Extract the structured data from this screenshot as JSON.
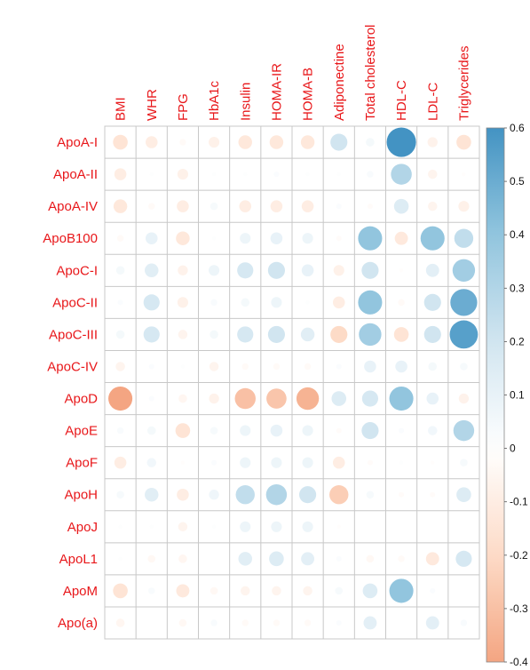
{
  "chart_data": {
    "type": "heatmap",
    "style": "correlation circle plot",
    "title": "",
    "columns": [
      "BMI",
      "WHR",
      "FPG",
      "HbA1c",
      "Insulin",
      "HOMA-IR",
      "HOMA-B",
      "Adiponectine",
      "Total cholesterol",
      "HDL-C",
      "LDL-C",
      "Triglycerides"
    ],
    "rows": [
      "ApoA-I",
      "ApoA-II",
      "ApoA-IV",
      "ApoB100",
      "ApoC-I",
      "ApoC-II",
      "ApoC-III",
      "ApoC-IV",
      "ApoD",
      "ApoE",
      "ApoF",
      "ApoH",
      "ApoJ",
      "ApoL1",
      "ApoM",
      "Apo(a)"
    ],
    "values": [
      [
        -0.15,
        -0.1,
        -0.03,
        -0.08,
        -0.13,
        -0.13,
        -0.13,
        0.2,
        0.05,
        0.6,
        -0.07,
        -0.15
      ],
      [
        -0.1,
        0.01,
        -0.08,
        0.01,
        0.01,
        0.02,
        0.01,
        0.01,
        0.03,
        0.3,
        -0.06,
        -0.01
      ],
      [
        -0.13,
        -0.03,
        -0.1,
        0.04,
        -0.1,
        -0.1,
        -0.1,
        0.02,
        -0.02,
        0.15,
        -0.06,
        -0.08
      ],
      [
        -0.03,
        0.1,
        -0.13,
        0.01,
        0.08,
        0.1,
        0.08,
        -0.02,
        0.4,
        -0.12,
        0.4,
        0.25
      ],
      [
        0.05,
        0.13,
        -0.07,
        0.08,
        0.18,
        0.2,
        0.1,
        -0.08,
        0.2,
        -0.01,
        0.12,
        0.35
      ],
      [
        0.02,
        0.18,
        -0.08,
        0.03,
        0.05,
        0.08,
        0.01,
        -0.1,
        0.4,
        -0.03,
        0.2,
        0.5
      ],
      [
        0.05,
        0.18,
        -0.06,
        0.05,
        0.18,
        0.2,
        0.13,
        -0.2,
        0.35,
        -0.15,
        0.2,
        0.55
      ],
      [
        -0.06,
        0.02,
        0.01,
        -0.06,
        -0.03,
        -0.03,
        -0.03,
        0.02,
        0.1,
        0.1,
        0.05,
        0.04
      ],
      [
        -0.4,
        0.02,
        -0.05,
        -0.07,
        -0.3,
        -0.28,
        -0.35,
        0.15,
        0.18,
        0.4,
        0.1,
        -0.07
      ],
      [
        0.03,
        0.05,
        -0.15,
        0.04,
        0.08,
        0.1,
        0.08,
        -0.02,
        0.2,
        0.02,
        0.06,
        0.3
      ],
      [
        -0.1,
        0.06,
        -0.01,
        0.02,
        0.08,
        0.08,
        0.08,
        -0.1,
        -0.02,
        0.01,
        -0.01,
        0.04
      ],
      [
        0.04,
        0.13,
        -0.1,
        0.07,
        0.25,
        0.3,
        0.2,
        -0.25,
        0.04,
        -0.02,
        -0.02,
        0.15
      ],
      [
        0.01,
        0.01,
        -0.06,
        0.01,
        0.08,
        0.08,
        0.08,
        -0.01,
        0.0,
        0.0,
        0.0,
        0.0
      ],
      [
        0.01,
        -0.04,
        -0.05,
        0.0,
        0.13,
        0.15,
        0.12,
        0.02,
        -0.04,
        -0.03,
        -0.12,
        0.18
      ],
      [
        -0.15,
        0.03,
        -0.12,
        -0.04,
        -0.06,
        -0.06,
        -0.06,
        0.04,
        0.15,
        0.4,
        0.02,
        0.0
      ],
      [
        -0.05,
        0.0,
        -0.04,
        0.03,
        -0.03,
        -0.03,
        -0.03,
        0.02,
        0.12,
        0.0,
        0.12,
        0.03
      ]
    ],
    "colorbar": {
      "range": [
        -0.4,
        0.6
      ],
      "ticks": [
        "0.6",
        "0.5",
        "0.4",
        "0.3",
        "0.2",
        "0.1",
        "0",
        "-0.1",
        "-0.2",
        "-0.3",
        "-0.4"
      ],
      "colors": [
        "#67001F",
        "#B2182B",
        "#D6604D",
        "#F4A582",
        "#FDDBC7",
        "#FFFFFF",
        "#D1E5F0",
        "#92C5DE",
        "#4393C3",
        "#2166AC",
        "#053061"
      ]
    },
    "label_color": "#E8171A",
    "grid": true
  }
}
